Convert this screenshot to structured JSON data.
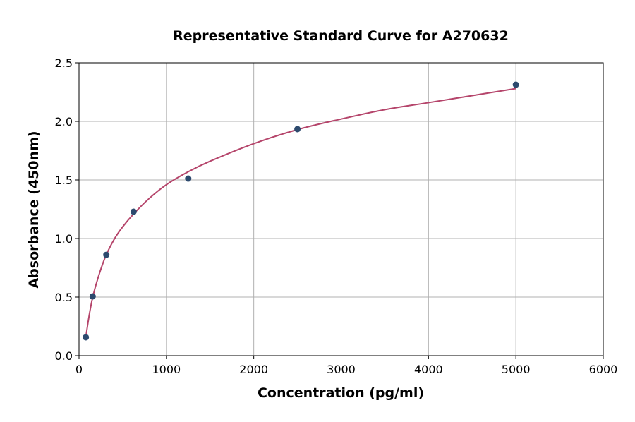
{
  "chart_data": {
    "type": "scatter",
    "title": "Representative Standard Curve for A270632",
    "xlabel": "Concentration (pg/ml)",
    "ylabel": "Absorbance (450nm)",
    "xlim": [
      0,
      6000
    ],
    "ylim": [
      0,
      2.5
    ],
    "xticks": [
      0,
      1000,
      2000,
      3000,
      4000,
      5000,
      6000
    ],
    "yticks": [
      "0.0",
      "0.5",
      "1.0",
      "1.5",
      "2.0",
      "2.5"
    ],
    "grid": true,
    "points": {
      "x": [
        78.125,
        156.25,
        312.5,
        625,
        1250,
        2500,
        5000
      ],
      "y": [
        0.157,
        0.506,
        0.861,
        1.229,
        1.512,
        1.934,
        2.313
      ]
    },
    "fit_curve": {
      "x": [
        78,
        120,
        160,
        220,
        300,
        400,
        500,
        625,
        800,
        1000,
        1250,
        1500,
        2000,
        2500,
        3000,
        3500,
        4000,
        4500,
        5000
      ],
      "y": [
        0.16,
        0.36,
        0.51,
        0.67,
        0.84,
        0.99,
        1.1,
        1.21,
        1.34,
        1.46,
        1.57,
        1.66,
        1.81,
        1.93,
        2.02,
        2.1,
        2.16,
        2.22,
        2.28
      ]
    },
    "colors": {
      "points": "#2d4a6e",
      "curve": "#b5456b",
      "grid": "#b0b0b0"
    }
  }
}
